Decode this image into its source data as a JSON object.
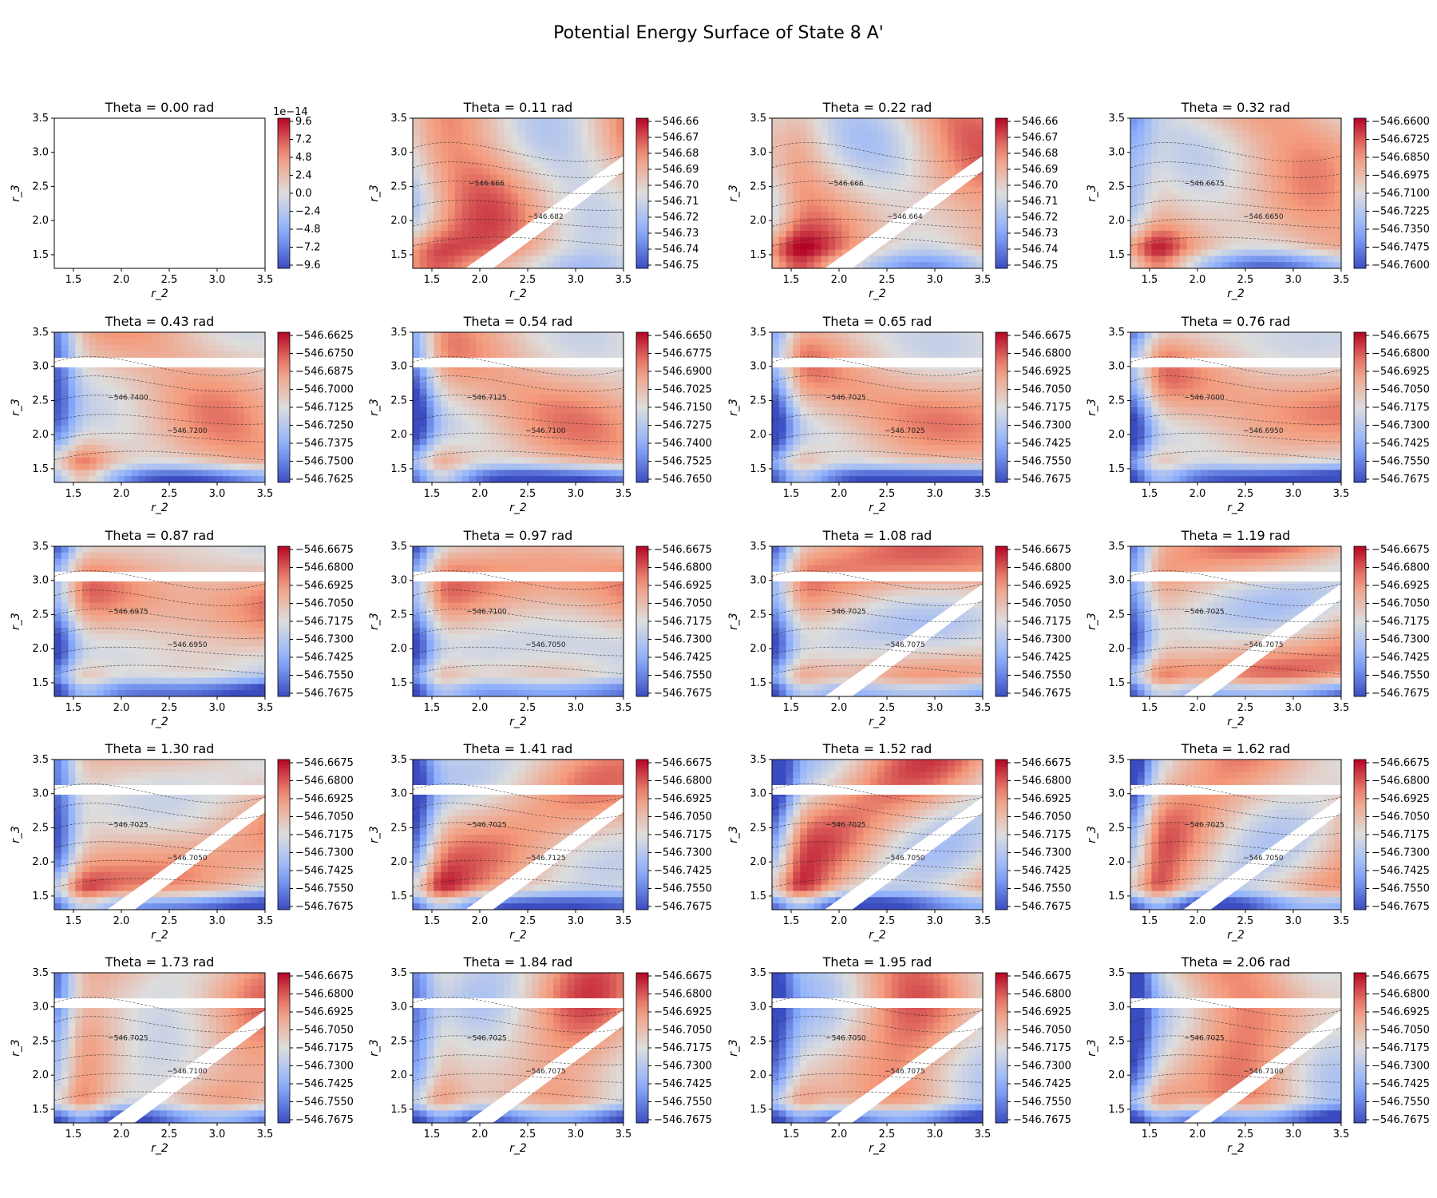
{
  "figure": {
    "title": "Potential Energy Surface of State 8 A'"
  },
  "chart_data": {
    "type": "contour",
    "title": "Potential Energy Surface of State 8 A'",
    "xlabel": "r_2",
    "ylabel": "r_3",
    "xlim": [
      1.3,
      3.5
    ],
    "ylim": [
      1.3,
      3.5
    ],
    "x_ticks": [
      "1.5",
      "2.0",
      "2.5",
      "3.0",
      "3.5"
    ],
    "y_ticks": [
      "1.5",
      "2.0",
      "2.5",
      "3.0",
      "3.5"
    ],
    "colormap": "coolwarm",
    "colors": {
      "low": "#3b4cc0",
      "mid": "#dddddd",
      "high": "#b40426"
    },
    "panels": [
      {
        "title": "Theta = 0.00 rad",
        "theta": 0.0,
        "cb_offset": "1e−14",
        "cb_ticks": [
          "9.6",
          "7.2",
          "4.8",
          "2.4",
          "0.0",
          "−2.4",
          "−4.8",
          "−7.2",
          "−9.6"
        ],
        "empty": true
      },
      {
        "title": "Theta = 0.11 rad",
        "theta": 0.11,
        "cb_ticks": [
          "−546.66",
          "−546.67",
          "−546.68",
          "−546.69",
          "−546.70",
          "−546.71",
          "−546.72",
          "−546.73",
          "−546.74",
          "−546.75"
        ],
        "contour_labels": [
          "−546.666",
          "−546.682"
        ]
      },
      {
        "title": "Theta = 0.22 rad",
        "theta": 0.22,
        "cb_ticks": [
          "−546.66",
          "−546.67",
          "−546.68",
          "−546.69",
          "−546.70",
          "−546.71",
          "−546.72",
          "−546.73",
          "−546.74",
          "−546.75"
        ],
        "contour_labels": [
          "−546.666",
          "−546.664"
        ]
      },
      {
        "title": "Theta = 0.32 rad",
        "theta": 0.32,
        "cb_ticks": [
          "−546.6600",
          "−546.6725",
          "−546.6850",
          "−546.6975",
          "−546.7100",
          "−546.7225",
          "−546.7350",
          "−546.7475",
          "−546.7600"
        ],
        "contour_labels": [
          "−546.6675",
          "−546.6650"
        ]
      },
      {
        "title": "Theta = 0.43 rad",
        "theta": 0.43,
        "cb_ticks": [
          "−546.6625",
          "−546.6750",
          "−546.6875",
          "−546.7000",
          "−546.7125",
          "−546.7250",
          "−546.7375",
          "−546.7500",
          "−546.7625"
        ],
        "contour_labels": [
          "−546.7400",
          "−546.7200"
        ]
      },
      {
        "title": "Theta = 0.54 rad",
        "theta": 0.54,
        "cb_ticks": [
          "−546.6650",
          "−546.6775",
          "−546.6900",
          "−546.7025",
          "−546.7150",
          "−546.7275",
          "−546.7400",
          "−546.7525",
          "−546.7650"
        ],
        "contour_labels": [
          "−546.7125",
          "−546.7100"
        ]
      },
      {
        "title": "Theta = 0.65 rad",
        "theta": 0.65,
        "cb_ticks": [
          "−546.6675",
          "−546.6800",
          "−546.6925",
          "−546.7050",
          "−546.7175",
          "−546.7300",
          "−546.7425",
          "−546.7550",
          "−546.7675"
        ],
        "contour_labels": [
          "−546.7025",
          "−546.7025"
        ]
      },
      {
        "title": "Theta = 0.76 rad",
        "theta": 0.76,
        "cb_ticks": [
          "−546.6675",
          "−546.6800",
          "−546.6925",
          "−546.7050",
          "−546.7175",
          "−546.7300",
          "−546.7425",
          "−546.7550",
          "−546.7675"
        ],
        "contour_labels": [
          "−546.7000",
          "−546.6950"
        ]
      },
      {
        "title": "Theta = 0.87 rad",
        "theta": 0.87,
        "cb_ticks": [
          "−546.6675",
          "−546.6800",
          "−546.6925",
          "−546.7050",
          "−546.7175",
          "−546.7300",
          "−546.7425",
          "−546.7550",
          "−546.7675"
        ],
        "contour_labels": [
          "−546.6975",
          "−546.6950"
        ]
      },
      {
        "title": "Theta = 0.97 rad",
        "theta": 0.97,
        "cb_ticks": [
          "−546.6675",
          "−546.6800",
          "−546.6925",
          "−546.7050",
          "−546.7175",
          "−546.7300",
          "−546.7425",
          "−546.7550",
          "−546.7675"
        ],
        "contour_labels": [
          "−546.7100",
          "−546.7050"
        ]
      },
      {
        "title": "Theta = 1.08 rad",
        "theta": 1.08,
        "cb_ticks": [
          "−546.6675",
          "−546.6800",
          "−546.6925",
          "−546.7050",
          "−546.7175",
          "−546.7300",
          "−546.7425",
          "−546.7550",
          "−546.7675"
        ],
        "contour_labels": [
          "−546.7025",
          "−546.7075"
        ]
      },
      {
        "title": "Theta = 1.19 rad",
        "theta": 1.19,
        "cb_ticks": [
          "−546.6675",
          "−546.6800",
          "−546.6925",
          "−546.7050",
          "−546.7175",
          "−546.7300",
          "−546.7425",
          "−546.7550",
          "−546.7675"
        ],
        "contour_labels": [
          "−546.7025",
          "−546.7075"
        ]
      },
      {
        "title": "Theta = 1.30 rad",
        "theta": 1.3,
        "cb_ticks": [
          "−546.6675",
          "−546.6800",
          "−546.6925",
          "−546.7050",
          "−546.7175",
          "−546.7300",
          "−546.7425",
          "−546.7550",
          "−546.7675"
        ],
        "contour_labels": [
          "−546.7025",
          "−546.7050"
        ]
      },
      {
        "title": "Theta = 1.41 rad",
        "theta": 1.41,
        "cb_ticks": [
          "−546.6675",
          "−546.6800",
          "−546.6925",
          "−546.7050",
          "−546.7175",
          "−546.7300",
          "−546.7425",
          "−546.7550",
          "−546.7675"
        ],
        "contour_labels": [
          "−546.7025",
          "−546.7125"
        ]
      },
      {
        "title": "Theta = 1.52 rad",
        "theta": 1.52,
        "cb_ticks": [
          "−546.6675",
          "−546.6800",
          "−546.6925",
          "−546.7050",
          "−546.7175",
          "−546.7300",
          "−546.7425",
          "−546.7550",
          "−546.7675"
        ],
        "contour_labels": [
          "−546.7025",
          "−546.7050"
        ]
      },
      {
        "title": "Theta = 1.62 rad",
        "theta": 1.62,
        "cb_ticks": [
          "−546.6675",
          "−546.6800",
          "−546.6925",
          "−546.7050",
          "−546.7175",
          "−546.7300",
          "−546.7425",
          "−546.7550",
          "−546.7675"
        ],
        "contour_labels": [
          "−546.7025",
          "−546.7050"
        ]
      },
      {
        "title": "Theta = 1.73 rad",
        "theta": 1.73,
        "cb_ticks": [
          "−546.6675",
          "−546.6800",
          "−546.6925",
          "−546.7050",
          "−546.7175",
          "−546.7300",
          "−546.7425",
          "−546.7550",
          "−546.7675"
        ],
        "contour_labels": [
          "−546.7025",
          "−546.7100"
        ]
      },
      {
        "title": "Theta = 1.84 rad",
        "theta": 1.84,
        "cb_ticks": [
          "−546.6675",
          "−546.6800",
          "−546.6925",
          "−546.7050",
          "−546.7175",
          "−546.7300",
          "−546.7425",
          "−546.7550",
          "−546.7675"
        ],
        "contour_labels": [
          "−546.7025",
          "−546.7075"
        ]
      },
      {
        "title": "Theta = 1.95 rad",
        "theta": 1.95,
        "cb_ticks": [
          "−546.6675",
          "−546.6800",
          "−546.6925",
          "−546.7050",
          "−546.7175",
          "−546.7300",
          "−546.7425",
          "−546.7550",
          "−546.7675"
        ],
        "contour_labels": [
          "−546.7050",
          "−546.7075"
        ]
      },
      {
        "title": "Theta = 2.06 rad",
        "theta": 2.06,
        "cb_ticks": [
          "−546.6675",
          "−546.6800",
          "−546.6925",
          "−546.7050",
          "−546.7175",
          "−546.7300",
          "−546.7425",
          "−546.7550",
          "−546.7675"
        ],
        "contour_labels": [
          "−546.7025",
          "−546.7100"
        ]
      }
    ]
  }
}
